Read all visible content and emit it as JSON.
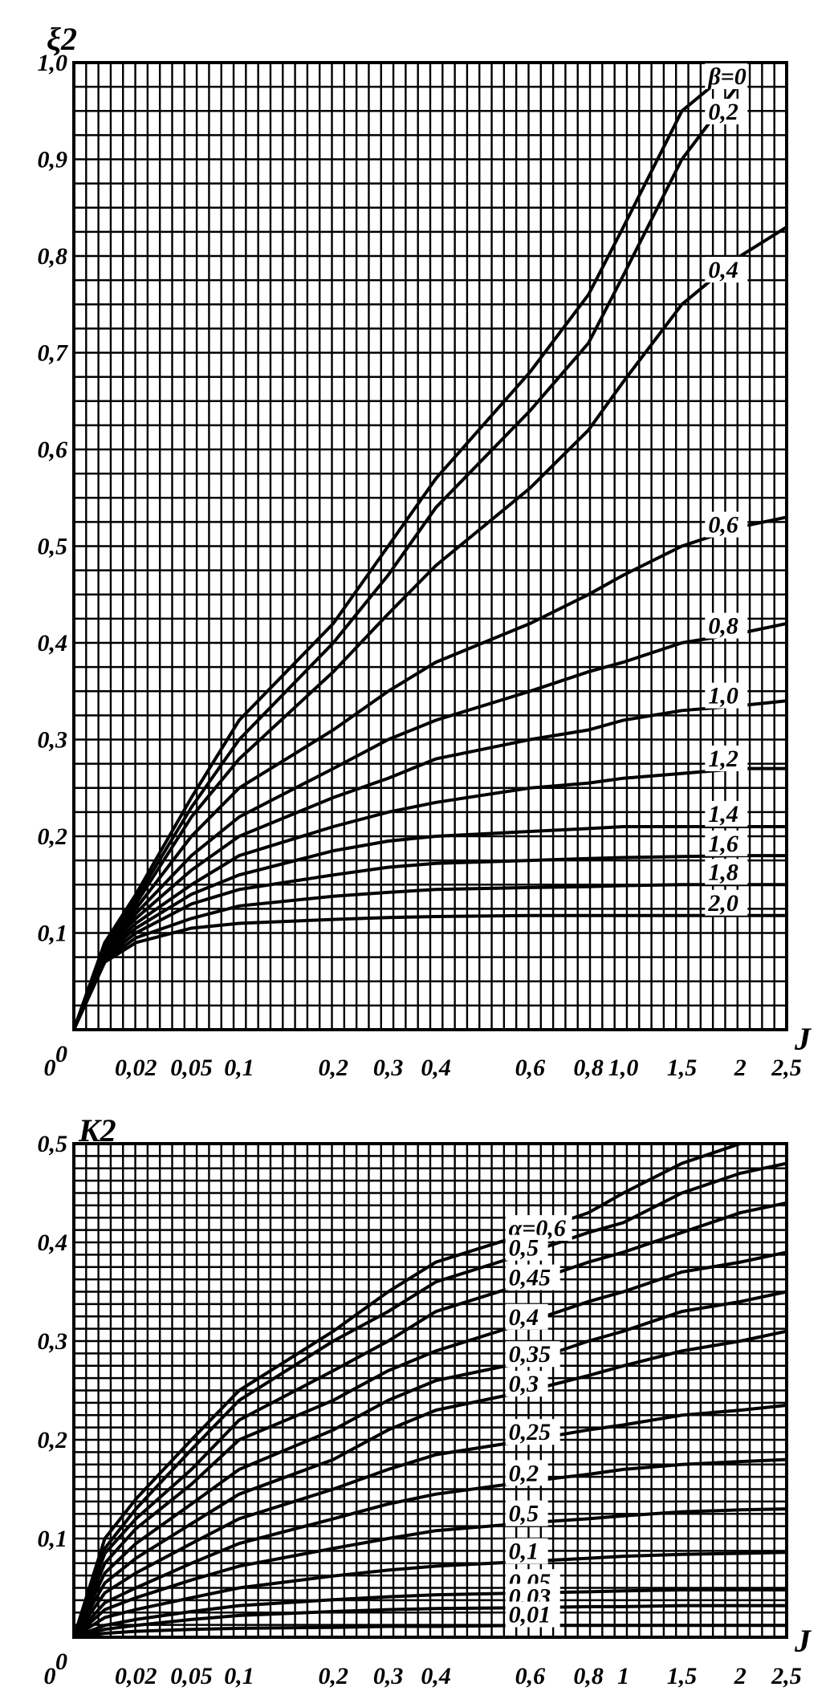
{
  "chart_data": [
    {
      "type": "line",
      "title": "",
      "ylabel": "ξ2",
      "xlabel": "J",
      "xscale": "nonlinear",
      "x_tick_labels": [
        "0",
        "0,02",
        "0,05",
        "0,1",
        "0,2",
        "0,3",
        "0,4",
        "0,6",
        "0,8",
        "1,0",
        "1,5",
        "2",
        "2,5"
      ],
      "y_tick_labels": [
        "1,0",
        "0,9",
        "0,8",
        "0,7",
        "0,6",
        "0,5",
        "0,4",
        "0,3",
        "0,2",
        "0,1",
        "0"
      ],
      "ylim": [
        0,
        1.0
      ],
      "grid": true,
      "series": [
        {
          "name": "β=0",
          "label": "β=0",
          "x": [
            0,
            0.01,
            0.02,
            0.05,
            0.1,
            0.2,
            0.3,
            0.4,
            0.6,
            0.8,
            1.0,
            1.5,
            2.0
          ],
          "y": [
            0,
            0.09,
            0.14,
            0.24,
            0.32,
            0.42,
            0.5,
            0.57,
            0.68,
            0.76,
            0.83,
            0.95,
            1.0
          ]
        },
        {
          "name": "0,2",
          "label": "0,2",
          "x": [
            0,
            0.01,
            0.02,
            0.05,
            0.1,
            0.2,
            0.3,
            0.4,
            0.6,
            0.8,
            1.0,
            1.5,
            2.0
          ],
          "y": [
            0,
            0.09,
            0.135,
            0.23,
            0.3,
            0.4,
            0.47,
            0.54,
            0.64,
            0.71,
            0.78,
            0.9,
            0.98
          ]
        },
        {
          "name": "0,4",
          "label": "0,4",
          "x": [
            0,
            0.01,
            0.02,
            0.05,
            0.1,
            0.2,
            0.3,
            0.4,
            0.6,
            0.8,
            1.0,
            1.5,
            2.0,
            2.5
          ],
          "y": [
            0,
            0.09,
            0.13,
            0.22,
            0.28,
            0.37,
            0.43,
            0.48,
            0.56,
            0.62,
            0.67,
            0.75,
            0.8,
            0.83
          ]
        },
        {
          "name": "0,6",
          "label": "0,6",
          "x": [
            0,
            0.01,
            0.02,
            0.05,
            0.1,
            0.2,
            0.3,
            0.4,
            0.6,
            0.8,
            1.0,
            1.5,
            2.0,
            2.5
          ],
          "y": [
            0,
            0.088,
            0.125,
            0.2,
            0.25,
            0.31,
            0.35,
            0.38,
            0.42,
            0.45,
            0.47,
            0.5,
            0.52,
            0.53
          ]
        },
        {
          "name": "0,8",
          "label": "0,8",
          "x": [
            0,
            0.01,
            0.02,
            0.05,
            0.1,
            0.2,
            0.3,
            0.4,
            0.6,
            0.8,
            1.0,
            1.5,
            2.0,
            2.5
          ],
          "y": [
            0,
            0.085,
            0.12,
            0.18,
            0.22,
            0.27,
            0.3,
            0.32,
            0.35,
            0.37,
            0.38,
            0.4,
            0.41,
            0.42
          ]
        },
        {
          "name": "1,0",
          "label": "1,0",
          "x": [
            0,
            0.01,
            0.02,
            0.05,
            0.1,
            0.2,
            0.3,
            0.4,
            0.6,
            0.8,
            1.0,
            1.5,
            2.0,
            2.5
          ],
          "y": [
            0,
            0.083,
            0.115,
            0.165,
            0.2,
            0.24,
            0.26,
            0.28,
            0.3,
            0.31,
            0.32,
            0.33,
            0.335,
            0.34
          ]
        },
        {
          "name": "1,2",
          "label": "1,2",
          "x": [
            0,
            0.01,
            0.02,
            0.05,
            0.1,
            0.2,
            0.3,
            0.4,
            0.6,
            0.8,
            1.0,
            1.5,
            2.0,
            2.5
          ],
          "y": [
            0,
            0.08,
            0.11,
            0.15,
            0.18,
            0.21,
            0.225,
            0.235,
            0.25,
            0.255,
            0.26,
            0.265,
            0.27,
            0.27
          ]
        },
        {
          "name": "1,4",
          "label": "1,4",
          "x": [
            0,
            0.01,
            0.02,
            0.05,
            0.1,
            0.2,
            0.3,
            0.4,
            0.6,
            0.8,
            1.0,
            1.5,
            2.0,
            2.5
          ],
          "y": [
            0,
            0.078,
            0.105,
            0.14,
            0.16,
            0.185,
            0.195,
            0.2,
            0.205,
            0.208,
            0.21,
            0.21,
            0.21,
            0.21
          ]
        },
        {
          "name": "1,6",
          "label": "1,6",
          "x": [
            0,
            0.01,
            0.02,
            0.05,
            0.1,
            0.2,
            0.3,
            0.4,
            0.6,
            0.8,
            1.0,
            1.5,
            2.0,
            2.5
          ],
          "y": [
            0,
            0.075,
            0.1,
            0.13,
            0.145,
            0.16,
            0.168,
            0.172,
            0.175,
            0.177,
            0.178,
            0.179,
            0.18,
            0.18
          ]
        },
        {
          "name": "1,8",
          "label": "1,8",
          "x": [
            0,
            0.01,
            0.02,
            0.05,
            0.1,
            0.2,
            0.3,
            0.4,
            0.6,
            0.8,
            1.0,
            1.5,
            2.0,
            2.5
          ],
          "y": [
            0,
            0.072,
            0.095,
            0.115,
            0.128,
            0.138,
            0.142,
            0.145,
            0.147,
            0.148,
            0.149,
            0.15,
            0.15,
            0.15
          ]
        },
        {
          "name": "2,0",
          "label": "2,0",
          "x": [
            0,
            0.01,
            0.02,
            0.05,
            0.1,
            0.2,
            0.3,
            0.4,
            0.6,
            0.8,
            1.0,
            1.5,
            2.0,
            2.5
          ],
          "y": [
            0,
            0.07,
            0.09,
            0.105,
            0.11,
            0.114,
            0.116,
            0.117,
            0.118,
            0.118,
            0.118,
            0.118,
            0.118,
            0.118
          ]
        }
      ]
    },
    {
      "type": "line",
      "title": "",
      "ylabel": "K2",
      "xlabel": "J",
      "xscale": "nonlinear",
      "x_tick_labels": [
        "0",
        "0,02",
        "0,05",
        "0,1",
        "0,2",
        "0,3",
        "0,4",
        "0,6",
        "0,8",
        "1",
        "1,5",
        "2",
        "2,5"
      ],
      "y_tick_labels": [
        "0,5",
        "0,4",
        "0,3",
        "0,2",
        "0,1",
        "0"
      ],
      "ylim": [
        0,
        0.5
      ],
      "grid": true,
      "series": [
        {
          "name": "α=0,6",
          "label": "α=0,6",
          "x": [
            0,
            0.01,
            0.02,
            0.05,
            0.1,
            0.2,
            0.3,
            0.4,
            0.6,
            0.8,
            1.0,
            1.5,
            2.0
          ],
          "y": [
            0,
            0.1,
            0.14,
            0.2,
            0.25,
            0.31,
            0.35,
            0.38,
            0.41,
            0.43,
            0.45,
            0.48,
            0.5
          ]
        },
        {
          "name": "0,5",
          "label": "0,5",
          "x": [
            0,
            0.01,
            0.02,
            0.05,
            0.1,
            0.2,
            0.3,
            0.4,
            0.6,
            0.8,
            1.0,
            1.5,
            2.0,
            2.5
          ],
          "y": [
            0,
            0.09,
            0.13,
            0.19,
            0.24,
            0.3,
            0.33,
            0.36,
            0.39,
            0.41,
            0.42,
            0.45,
            0.47,
            0.48
          ]
        },
        {
          "name": "0,45",
          "label": "0,45",
          "x": [
            0,
            0.01,
            0.02,
            0.05,
            0.1,
            0.2,
            0.3,
            0.4,
            0.6,
            0.8,
            1.0,
            1.5,
            2.0,
            2.5
          ],
          "y": [
            0,
            0.085,
            0.12,
            0.17,
            0.22,
            0.27,
            0.3,
            0.33,
            0.36,
            0.38,
            0.39,
            0.41,
            0.43,
            0.44
          ]
        },
        {
          "name": "0,4",
          "label": "0,4",
          "x": [
            0,
            0.01,
            0.02,
            0.05,
            0.1,
            0.2,
            0.3,
            0.4,
            0.6,
            0.8,
            1.0,
            1.5,
            2.0,
            2.5
          ],
          "y": [
            0,
            0.075,
            0.11,
            0.155,
            0.2,
            0.24,
            0.27,
            0.29,
            0.32,
            0.34,
            0.35,
            0.37,
            0.38,
            0.39
          ]
        },
        {
          "name": "0,35",
          "label": "0,35",
          "x": [
            0,
            0.01,
            0.02,
            0.05,
            0.1,
            0.2,
            0.3,
            0.4,
            0.6,
            0.8,
            1.0,
            1.5,
            2.0,
            2.5
          ],
          "y": [
            0,
            0.065,
            0.095,
            0.135,
            0.17,
            0.21,
            0.24,
            0.26,
            0.28,
            0.3,
            0.31,
            0.33,
            0.34,
            0.35
          ]
        },
        {
          "name": "0,3",
          "label": "0,3",
          "x": [
            0,
            0.01,
            0.02,
            0.05,
            0.1,
            0.2,
            0.3,
            0.4,
            0.6,
            0.8,
            1.0,
            1.5,
            2.0,
            2.5
          ],
          "y": [
            0,
            0.055,
            0.08,
            0.115,
            0.145,
            0.18,
            0.21,
            0.23,
            0.25,
            0.265,
            0.275,
            0.29,
            0.3,
            0.31
          ]
        },
        {
          "name": "0,25",
          "label": "0,25",
          "x": [
            0,
            0.01,
            0.02,
            0.05,
            0.1,
            0.2,
            0.3,
            0.4,
            0.6,
            0.8,
            1.0,
            1.5,
            2.0,
            2.5
          ],
          "y": [
            0,
            0.045,
            0.065,
            0.095,
            0.12,
            0.15,
            0.17,
            0.185,
            0.2,
            0.21,
            0.215,
            0.225,
            0.23,
            0.235
          ]
        },
        {
          "name": "0,2",
          "label": "0,2",
          "x": [
            0,
            0.01,
            0.02,
            0.05,
            0.1,
            0.2,
            0.3,
            0.4,
            0.6,
            0.8,
            1.0,
            1.5,
            2.0,
            2.5
          ],
          "y": [
            0,
            0.035,
            0.05,
            0.075,
            0.095,
            0.12,
            0.135,
            0.145,
            0.158,
            0.165,
            0.17,
            0.175,
            0.178,
            0.18
          ]
        },
        {
          "name": "0,5",
          "label": "0,5",
          "x": [
            0,
            0.01,
            0.02,
            0.05,
            0.1,
            0.2,
            0.3,
            0.4,
            0.6,
            0.8,
            1.0,
            1.5,
            2.0,
            2.5
          ],
          "y": [
            0,
            0.028,
            0.04,
            0.058,
            0.072,
            0.09,
            0.1,
            0.108,
            0.116,
            0.12,
            0.123,
            0.127,
            0.129,
            0.13
          ]
        },
        {
          "name": "0,1",
          "label": "0,1",
          "x": [
            0,
            0.01,
            0.02,
            0.05,
            0.1,
            0.2,
            0.3,
            0.4,
            0.6,
            0.8,
            1.0,
            1.5,
            2.0,
            2.5
          ],
          "y": [
            0,
            0.02,
            0.028,
            0.04,
            0.05,
            0.062,
            0.068,
            0.072,
            0.077,
            0.08,
            0.082,
            0.084,
            0.085,
            0.086
          ]
        },
        {
          "name": "0,05",
          "label": "0,05",
          "x": [
            0,
            0.01,
            0.02,
            0.05,
            0.1,
            0.2,
            0.3,
            0.4,
            0.6,
            0.8,
            1.0,
            1.5,
            2.0,
            2.5
          ],
          "y": [
            0,
            0.012,
            0.018,
            0.026,
            0.032,
            0.038,
            0.041,
            0.043,
            0.045,
            0.046,
            0.047,
            0.048,
            0.048,
            0.048
          ]
        },
        {
          "name": "0,03",
          "label": "0,03",
          "x": [
            0,
            0.01,
            0.02,
            0.05,
            0.1,
            0.2,
            0.3,
            0.4,
            0.6,
            0.8,
            1.0,
            1.5,
            2.0,
            2.5
          ],
          "y": [
            0,
            0.008,
            0.012,
            0.018,
            0.022,
            0.026,
            0.028,
            0.029,
            0.03,
            0.031,
            0.031,
            0.032,
            0.032,
            0.032
          ]
        },
        {
          "name": "0,01",
          "label": "0,01",
          "x": [
            0,
            0.01,
            0.02,
            0.05,
            0.1,
            0.2,
            0.3,
            0.4,
            0.6,
            0.8,
            1.0,
            1.5,
            2.0,
            2.5
          ],
          "y": [
            0,
            0.004,
            0.006,
            0.008,
            0.009,
            0.01,
            0.011,
            0.011,
            0.012,
            0.012,
            0.012,
            0.012,
            0.012,
            0.012
          ]
        }
      ]
    }
  ]
}
